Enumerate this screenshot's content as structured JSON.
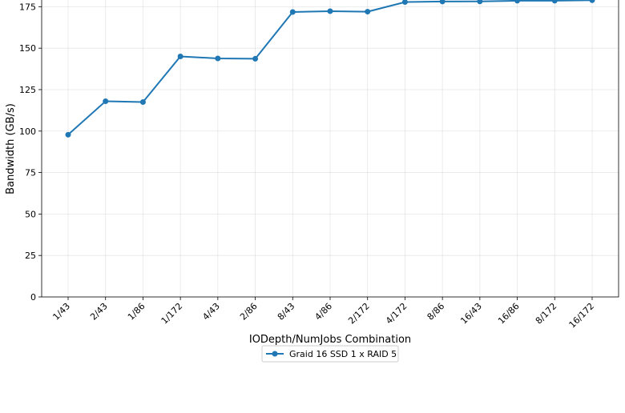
{
  "chart_data": {
    "type": "line",
    "xlabel": "IODepth/NumJobs Combination",
    "ylabel": "Bandwidth (GB/s)",
    "ylim": [
      0,
      180
    ],
    "yticks": [
      0,
      25,
      50,
      75,
      100,
      125,
      150,
      175
    ],
    "grid": true,
    "legend_position": "bottom-center",
    "categories": [
      "1/43",
      "2/43",
      "1/86",
      "1/172",
      "4/43",
      "2/86",
      "8/43",
      "4/86",
      "2/172",
      "4/172",
      "8/86",
      "16/43",
      "16/86",
      "8/172",
      "16/172"
    ],
    "series": [
      {
        "name": "Graid 16 SSD 1 x RAID 5",
        "color": "#1f77b4",
        "marker": "circle",
        "values": [
          97.8,
          118.0,
          117.5,
          145.0,
          143.8,
          143.6,
          171.8,
          172.3,
          172.0,
          177.8,
          178.1,
          178.2,
          178.6,
          178.6,
          178.9
        ]
      }
    ]
  }
}
